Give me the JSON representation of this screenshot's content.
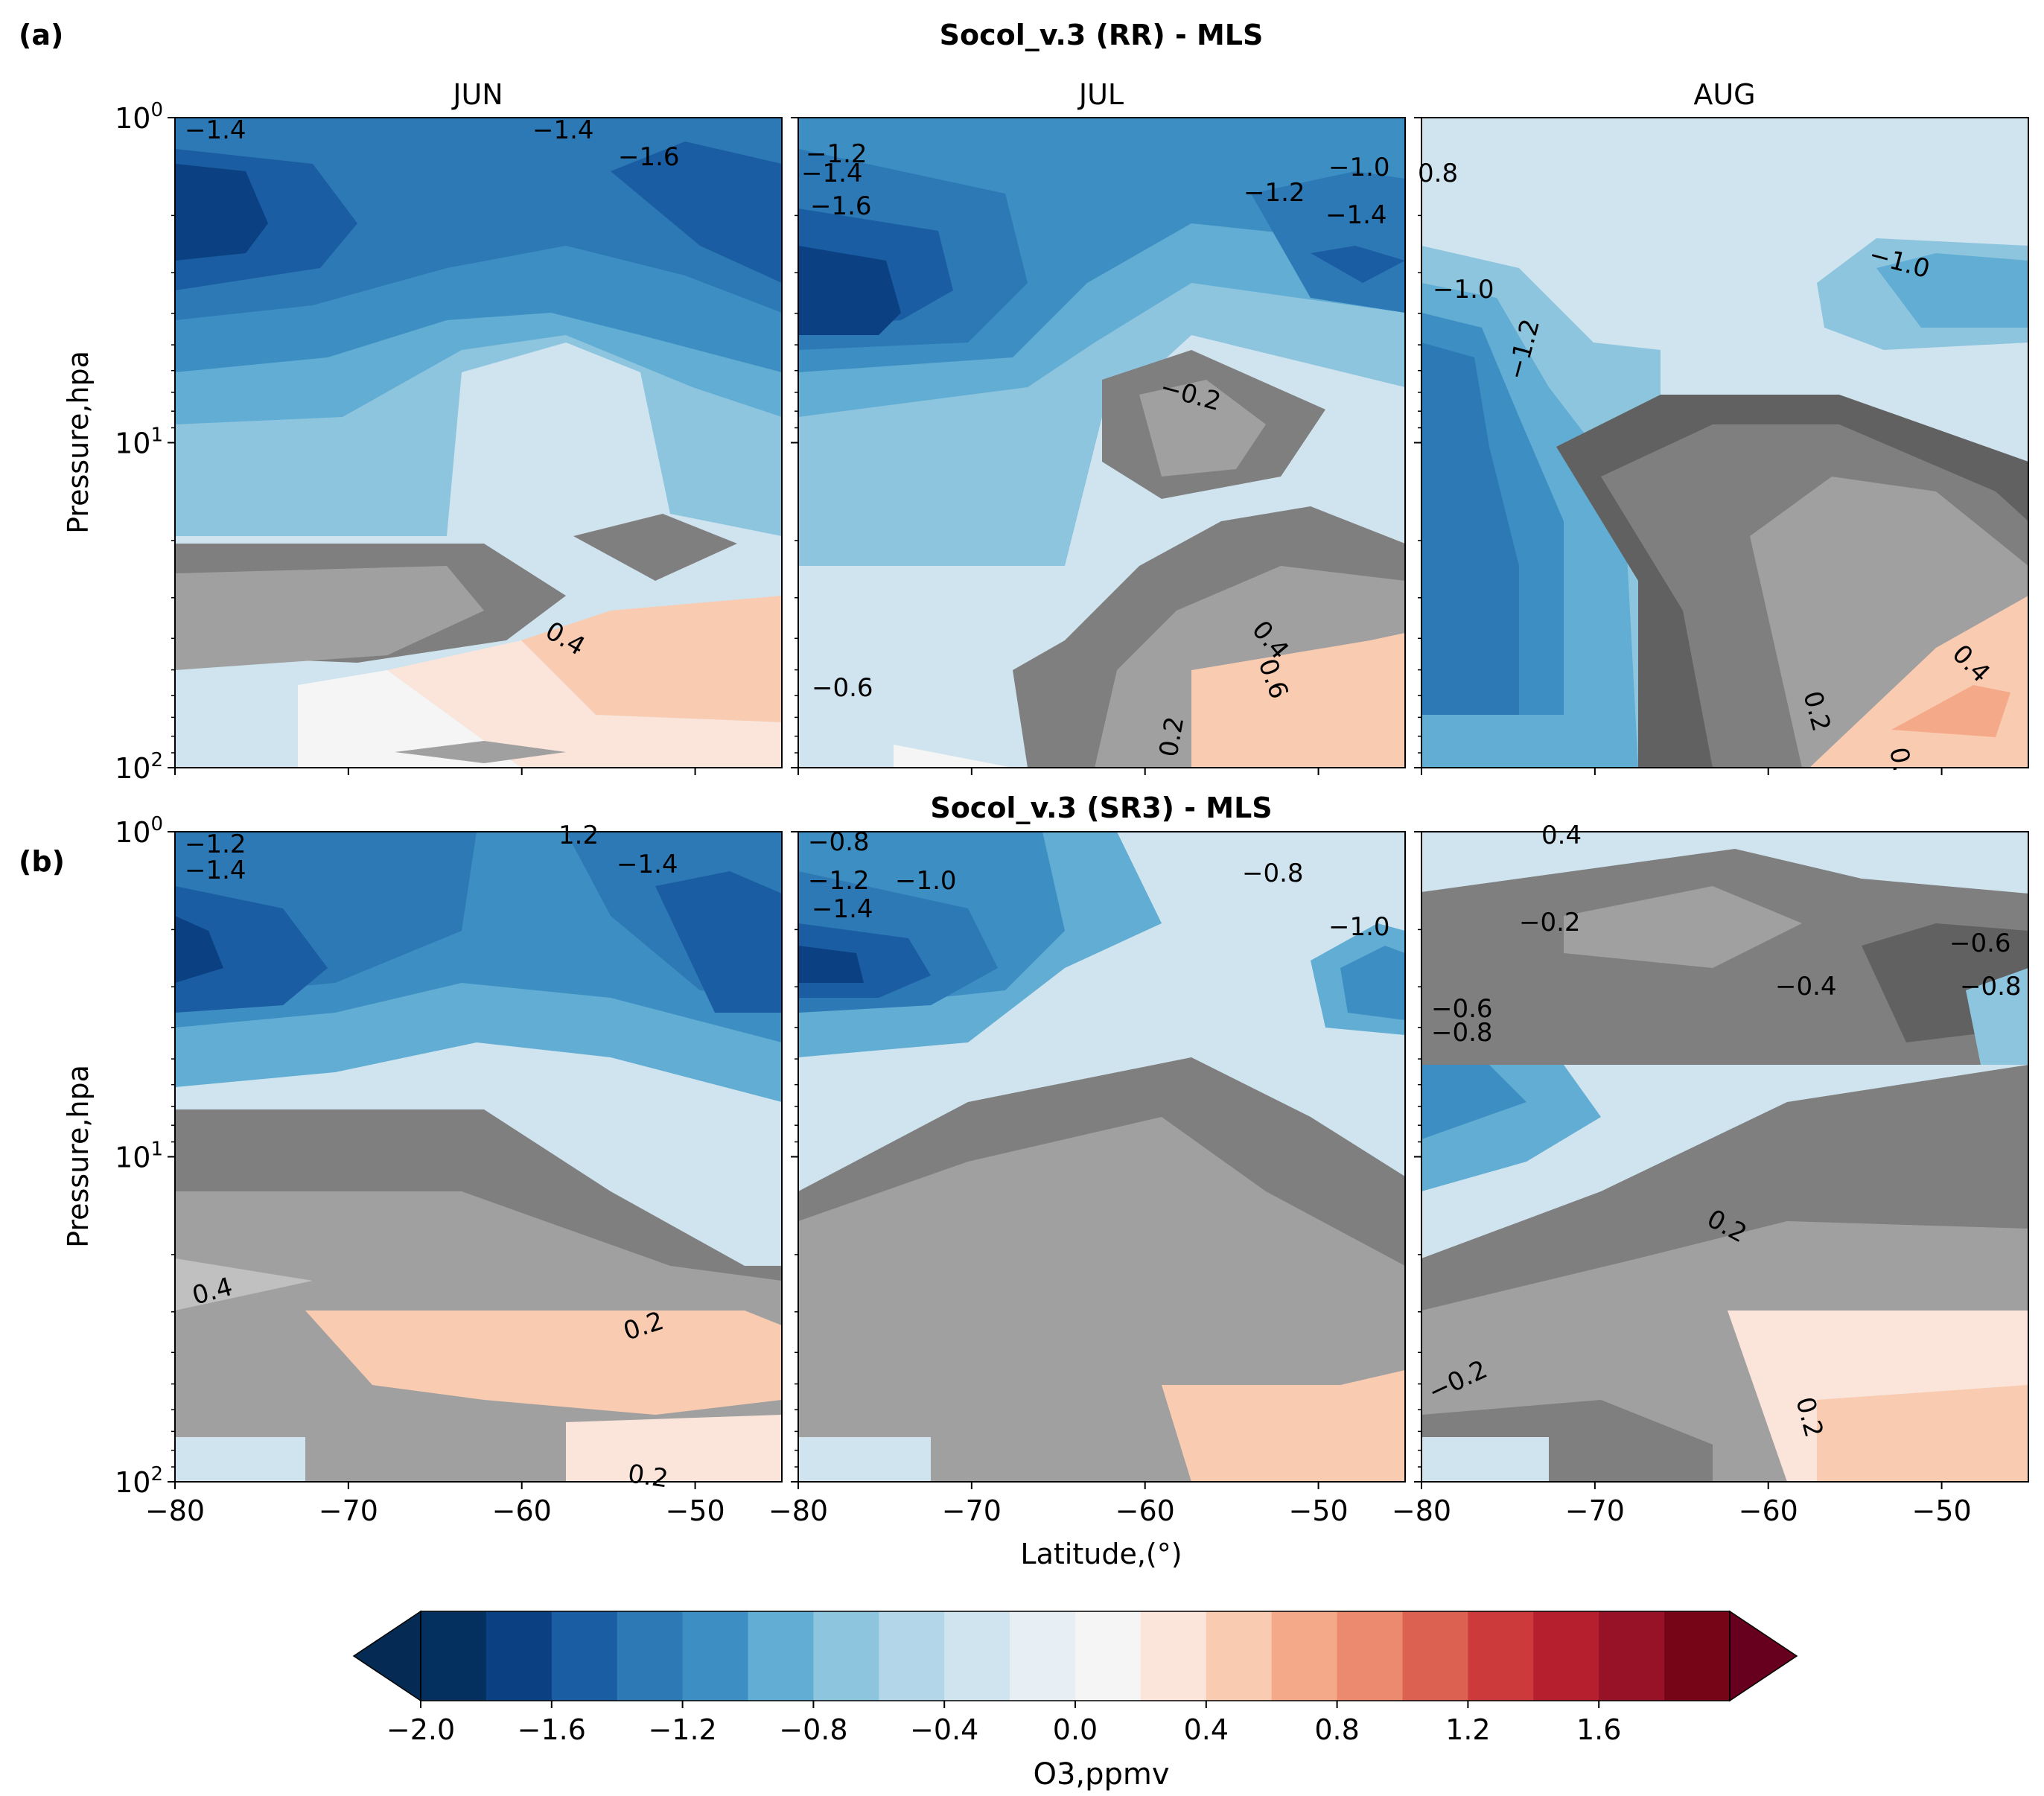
{
  "figure": {
    "panel_a_letter": "(a)",
    "panel_b_letter": "(b)",
    "xlabel": "Latitude,(°)",
    "colorbar_label": "O3,ppmv"
  },
  "colorbar": {
    "levels": [
      -2.0,
      -1.8,
      -1.6,
      -1.4,
      -1.2,
      -1.0,
      -0.8,
      -0.6,
      -0.4,
      -0.2,
      0.0,
      0.2,
      0.4,
      0.6,
      0.8,
      1.0,
      1.2,
      1.4,
      1.6,
      1.8
    ],
    "colors": [
      "#03305e",
      "#0b4183",
      "#1b5da2",
      "#2d79b5",
      "#3d8ec3",
      "#62add3",
      "#8dc4de",
      "#b3d7e8",
      "#cfe4ef",
      "#e7eff4",
      "#f5f5f5",
      "#fbe4d9",
      "#f9cbb1",
      "#f4a988",
      "#eb8a6e",
      "#dd6151",
      "#cc3a3b",
      "#b6202e",
      "#971227",
      "#760518"
    ],
    "under_color": "#052a53",
    "over_color": "#67001f",
    "ticks": [
      "−2.0",
      "−1.6",
      "−1.2",
      "−0.8",
      "−0.4",
      "0.0",
      "0.4",
      "0.8",
      "1.2",
      "1.6"
    ],
    "tick_values": [
      -2.0,
      -1.6,
      -1.2,
      -0.8,
      -0.4,
      0.0,
      0.4,
      0.8,
      1.2,
      1.6
    ]
  },
  "chart_data": [
    {
      "type": "contourf",
      "panel": "(a)",
      "title": "Socol_v.3 (RR) - MLS",
      "columns": [
        "JUN",
        "JUL",
        "AUG"
      ],
      "xlabel": "Latitude,(°)",
      "ylabel": "Pressure,hpa",
      "xlim": [
        -80,
        -45
      ],
      "ylim": [
        100,
        1
      ],
      "yscale": "log",
      "xticks": [
        "−80",
        "−70",
        "−60",
        "−50"
      ],
      "xtick_values": [
        -80,
        -70,
        -60,
        -50
      ],
      "yticks": [
        {
          "base": "10",
          "exp": "0",
          "value": 1
        },
        {
          "base": "10",
          "exp": "1",
          "value": 10
        },
        {
          "base": "10",
          "exp": "2",
          "value": 100
        }
      ],
      "contour_labels": [
        [
          "−1.4",
          "−1.4",
          "−1.6",
          "0.4"
        ],
        [
          "−1.2",
          "−1.4",
          "−1.6",
          "−1.2",
          "−1.0",
          "−1.4",
          "−0.2",
          "0.4",
          "0.6",
          "−0.6",
          "0.2"
        ],
        [
          "0.8",
          "−1.0",
          "−1.0",
          "−1.2",
          "0.4",
          "0.2",
          "0."
        ]
      ],
      "layers": [
        {
          "name": "r1",
          "value": -1.6,
          "color": "#1b5da2",
          "stops": [
            [
              -80,
              0.9
            ],
            [
              -70,
              0.85
            ],
            [
              -60,
              0.3
            ],
            [
              -50,
              0.7
            ],
            [
              -45,
              0.6
            ]
          ]
        },
        {
          "name": "r2",
          "value": -1.4,
          "color": "#2d79b5",
          "stops": [
            [
              -80,
              0.5
            ],
            [
              -70,
              1.0
            ],
            [
              -60,
              2.6
            ],
            [
              -50,
              1.6
            ],
            [
              -45,
              2.2
            ]
          ]
        },
        {
          "name": "r3",
          "value": -1.2,
          "color": "#3d8ec3",
          "stops": [
            [
              -80,
              0.4
            ],
            [
              -70,
              0.4
            ],
            [
              -60,
              0.4
            ],
            [
              -50,
              0.4
            ],
            [
              -45,
              0.4
            ]
          ]
        }
      ]
    },
    {
      "type": "contourf",
      "panel": "(b)",
      "title": "Socol_v.3 (SR3) - MLS",
      "columns": [
        "JUN",
        "JUL",
        "AUG"
      ],
      "xlabel": "Latitude,(°)",
      "ylabel": "Pressure,hpa",
      "xlim": [
        -80,
        -45
      ],
      "ylim": [
        100,
        1
      ],
      "yscale": "log",
      "xticks": [
        "−80",
        "−70",
        "−60",
        "−50"
      ],
      "xtick_values": [
        -80,
        -70,
        -60,
        -50
      ],
      "yticks": [
        {
          "base": "10",
          "exp": "0",
          "value": 1
        },
        {
          "base": "10",
          "exp": "1",
          "value": 10
        },
        {
          "base": "10",
          "exp": "2",
          "value": 100
        }
      ],
      "contour_labels": [
        [
          "−1.2",
          "−1.4",
          "1.2",
          "−1.4",
          "0.4",
          "0.2",
          "0.2"
        ],
        [
          "−0.8",
          "−1.2",
          "−1.0",
          "−1.4",
          "−0.8",
          "−1.0"
        ],
        [
          "0.4",
          "−0.2",
          "−0.6",
          "−0.4",
          "−0.8",
          "−0.6",
          "−0.8",
          "0.2",
          "−0.2",
          "0.2"
        ]
      ]
    }
  ]
}
